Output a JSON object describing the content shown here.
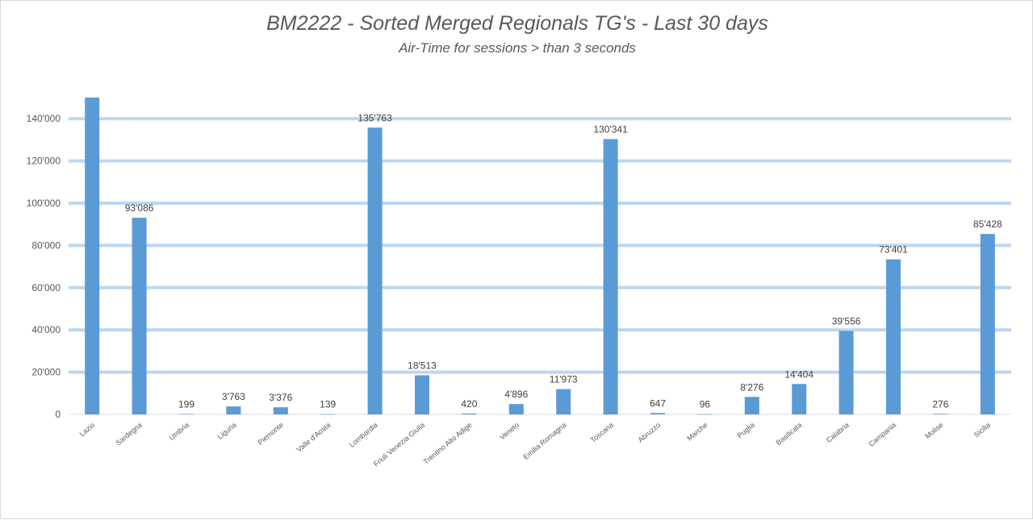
{
  "chart_data": {
    "type": "bar",
    "title": "BM2222 - Sorted Merged Regionals TG's - Last 30 days",
    "subtitle": "Air-Time for sessions > than 3 seconds",
    "categories": [
      "Lazio",
      "Sardegna",
      "Umbria",
      "Liguria",
      "Piemonte",
      "Valle d'Aosta",
      "Lombardia",
      "Friuli Venezia Giulia",
      "Trentino Alto Adige",
      "Veneto",
      "Emilia Romagna",
      "Toscana",
      "Abruzzo",
      "Marche",
      "Puglia",
      "Basilicata",
      "Calabria",
      "Campania",
      "Molise",
      "Sicilia"
    ],
    "values": [
      150000,
      93086,
      199,
      3763,
      3376,
      139,
      135763,
      18513,
      420,
      4896,
      11973,
      130341,
      647,
      96,
      8276,
      14404,
      39556,
      73401,
      276,
      85428
    ],
    "data_labels": [
      null,
      "93'086",
      "199",
      "3'763",
      "3'376",
      "139",
      "135'763",
      "18'513",
      "420",
      "4'896",
      "11'973",
      "130'341",
      "647",
      "96",
      "8'276",
      "14'404",
      "39'556",
      "73'401",
      "276",
      "85'428"
    ],
    "yticks": [
      0,
      20000,
      40000,
      60000,
      80000,
      100000,
      120000,
      140000
    ],
    "ytick_labels": [
      "0",
      "20'000",
      "40'000",
      "60'000",
      "80'000",
      "100'000",
      "120'000",
      "140'000"
    ],
    "ylim": [
      0,
      150000
    ],
    "grid": true,
    "bar_color": "#5b9bd5",
    "grid_color": "#bdd7ee"
  }
}
